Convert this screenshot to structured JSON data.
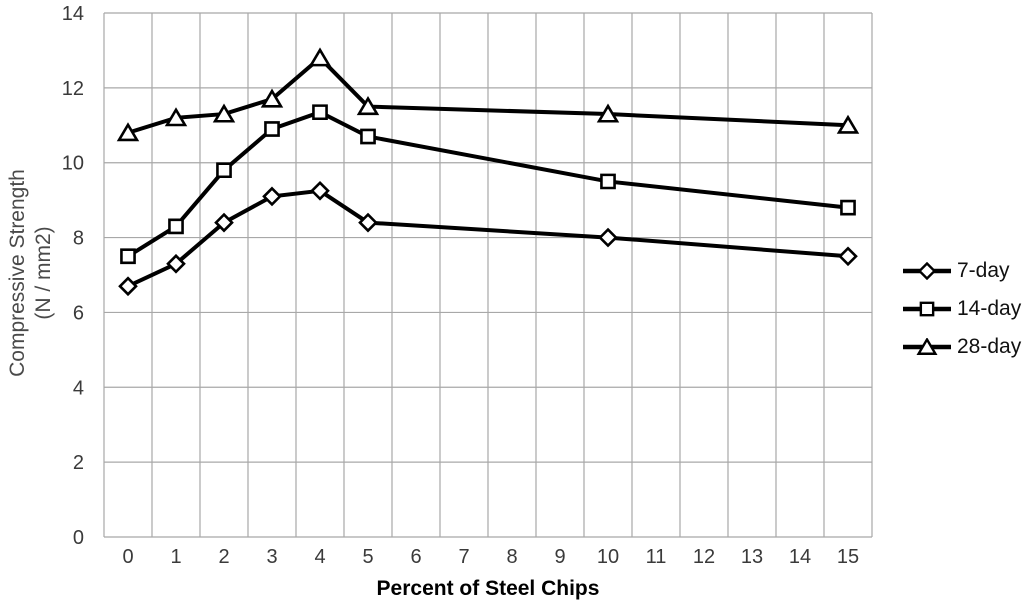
{
  "chart_data": {
    "type": "line",
    "title": "",
    "xlabel": "Percent of Steel Chips",
    "ylabel": "Compressive Strength (N / mm2)",
    "ylabel_lines": [
      "Compressive Strength",
      "(N / mm2)"
    ],
    "axis_type": "category",
    "x_tick_labels": [
      "0",
      "1",
      "2",
      "3",
      "4",
      "5",
      "6",
      "7",
      "8",
      "9",
      "10",
      "11",
      "12",
      "13",
      "14",
      "15"
    ],
    "y_ticks": [
      0,
      2,
      4,
      6,
      8,
      10,
      12,
      14
    ],
    "ylim": [
      0,
      14
    ],
    "grid": true,
    "legend_position": "right",
    "data_x_categories": [
      0,
      1,
      2,
      3,
      4,
      5,
      10,
      15
    ],
    "series": [
      {
        "name": "7-day",
        "marker": "diamond",
        "values": [
          6.7,
          7.3,
          8.4,
          9.1,
          9.25,
          8.4,
          8.0,
          7.5
        ]
      },
      {
        "name": "14-day",
        "marker": "square",
        "values": [
          7.5,
          8.3,
          9.8,
          10.9,
          11.35,
          10.7,
          9.5,
          8.8
        ]
      },
      {
        "name": "28-day",
        "marker": "triangle",
        "values": [
          10.8,
          11.2,
          11.3,
          11.7,
          12.8,
          11.5,
          11.3,
          11.0
        ]
      }
    ],
    "colors": {
      "series_line": "#000000",
      "marker_fill": "#ffffff",
      "gridline": "#a8a8a8",
      "tick_label": "#3a3a3a",
      "axis_title": "#000000",
      "y_axis_title": "#4a4a4a",
      "background": "#ffffff"
    }
  }
}
